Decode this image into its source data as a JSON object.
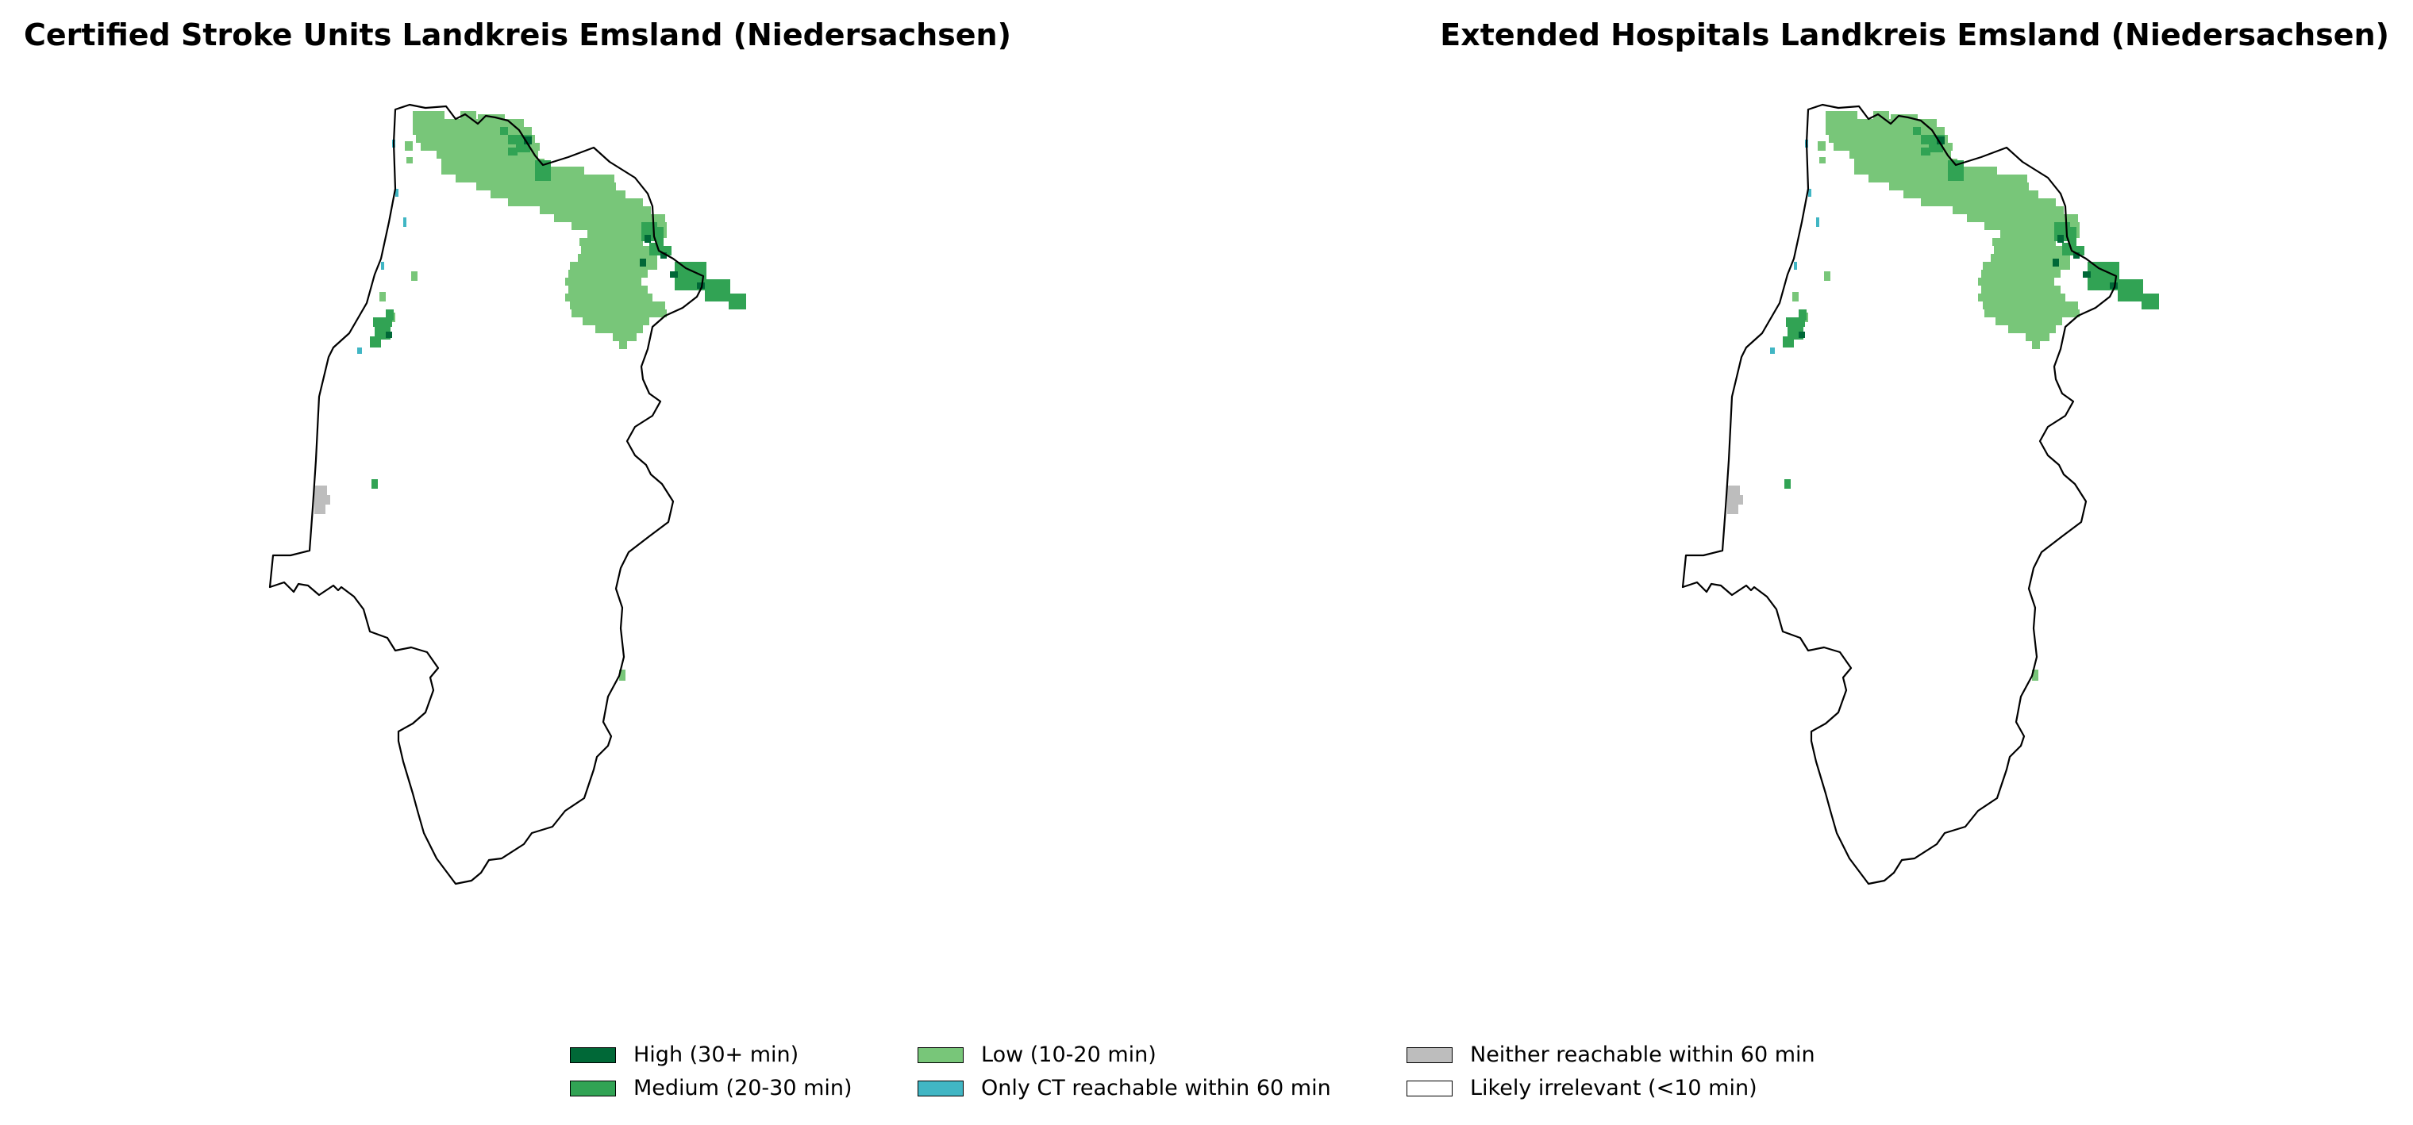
{
  "panels": [
    {
      "title": "Certified Stroke Units Landkreis Emsland (Niedersachsen)"
    },
    {
      "title": "Extended Hospitals Landkreis Emsland (Niedersachsen)"
    }
  ],
  "legend": {
    "items": [
      {
        "label": "High (30+ min)",
        "color": "#006837"
      },
      {
        "label": "Medium (20-30 min)",
        "color": "#31a354"
      },
      {
        "label": "Low (10-20 min)",
        "color": "#78c679"
      },
      {
        "label": "Only CT reachable within 60 min",
        "color": "#41b6c4"
      },
      {
        "label": "Neither reachable within 60 min",
        "color": "#bdbdbd"
      },
      {
        "label": "Likely irrelevant (<10 min)",
        "color": "#ffffff"
      }
    ]
  }
}
